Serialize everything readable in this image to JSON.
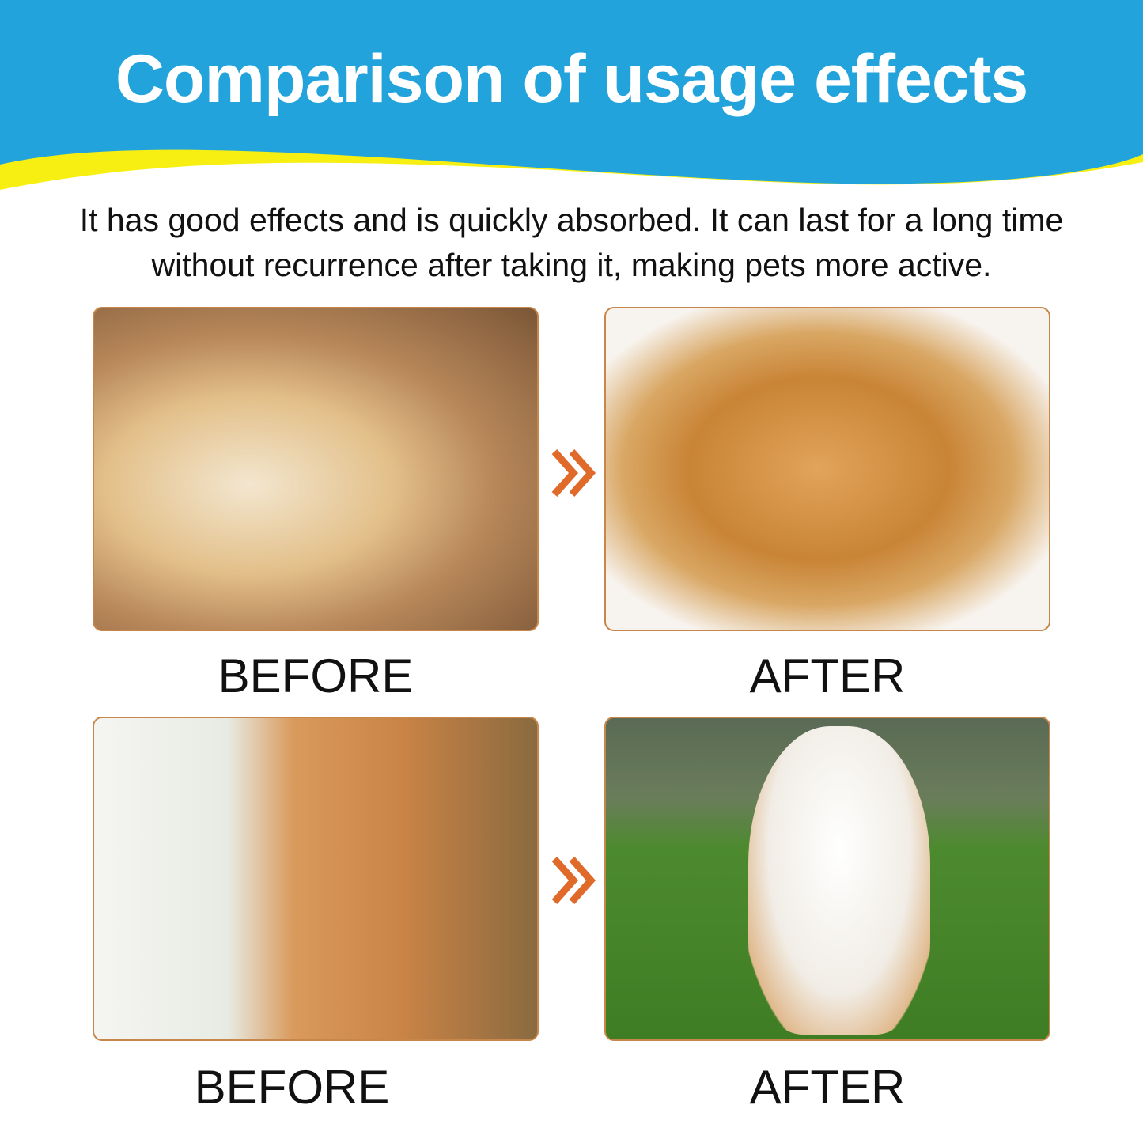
{
  "header": {
    "title": "Comparison of usage effects",
    "colors": {
      "blue": "#22a3dc",
      "yellow": "#f7ef12"
    }
  },
  "subtitle": "It has good effects and is quickly absorbed. It can last for a long time without recurrence after taking it, making pets more active.",
  "panels": [
    {
      "label": "BEFORE",
      "image": "tired-yawning-golden-retriever"
    },
    {
      "label": "AFTER",
      "image": "happy-golden-retriever"
    },
    {
      "label": "BEFORE",
      "image": "yawning-orange-cat"
    },
    {
      "label": "AFTER",
      "image": "white-orange-cat-on-grass"
    }
  ],
  "arrow_icon": "double-chevron-right-icon",
  "accent": "#e06a2a"
}
